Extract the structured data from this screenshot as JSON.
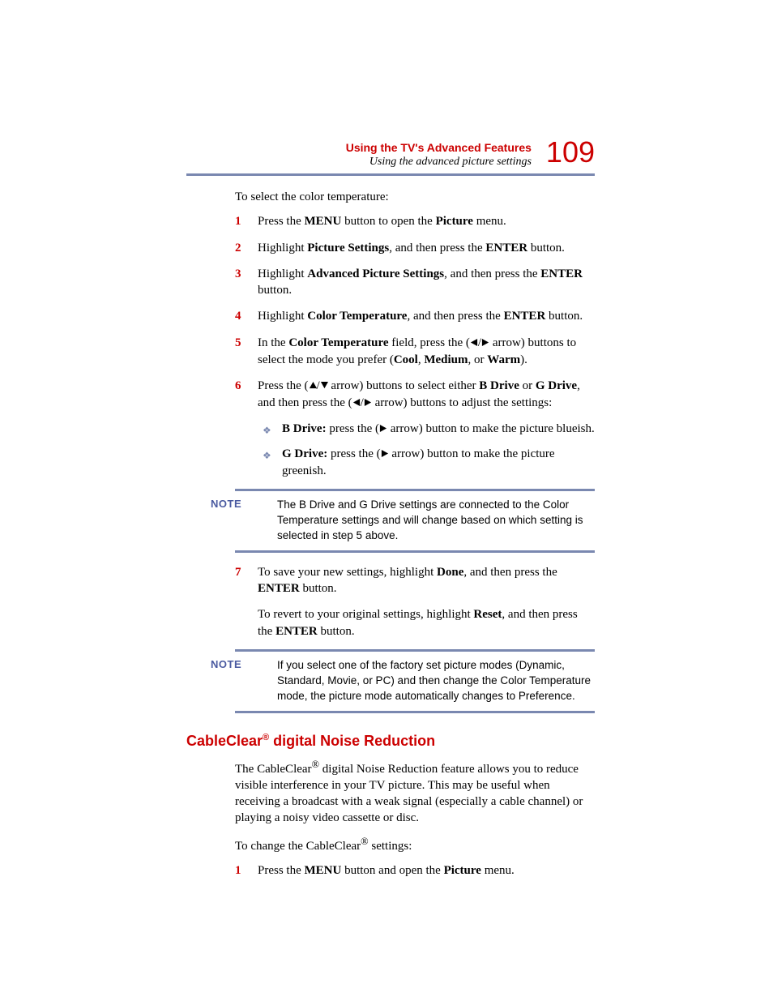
{
  "colors": {
    "accent_red": "#cc0000",
    "rule_blue": "#7a88b0",
    "note_label": "#4a5aa0",
    "text": "#000000",
    "background": "#ffffff"
  },
  "header": {
    "chapter_title": "Using the TV's Advanced Features",
    "section_subtitle": "Using the advanced picture settings",
    "page_number": "109"
  },
  "intro_text": "To select the color temperature:",
  "steps": [
    {
      "n": "1",
      "segments": [
        {
          "t": "Press the "
        },
        {
          "t": "MENU",
          "b": true
        },
        {
          "t": " button to open the "
        },
        {
          "t": "Picture",
          "b": true
        },
        {
          "t": " menu."
        }
      ]
    },
    {
      "n": "2",
      "segments": [
        {
          "t": "Highlight "
        },
        {
          "t": "Picture Settings",
          "b": true
        },
        {
          "t": ", and then press the "
        },
        {
          "t": "ENTER",
          "b": true
        },
        {
          "t": " button."
        }
      ]
    },
    {
      "n": "3",
      "segments": [
        {
          "t": "Highlight "
        },
        {
          "t": "Advanced Picture Settings",
          "b": true
        },
        {
          "t": ", and then press the "
        },
        {
          "t": "ENTER",
          "b": true
        },
        {
          "t": " button."
        }
      ]
    },
    {
      "n": "4",
      "segments": [
        {
          "t": "Highlight "
        },
        {
          "t": "Color Temperature",
          "b": true
        },
        {
          "t": ", and then press the "
        },
        {
          "t": "ENTER",
          "b": true
        },
        {
          "t": " button."
        }
      ]
    },
    {
      "n": "5",
      "segments": [
        {
          "t": "In the "
        },
        {
          "t": "Color Temperature",
          "b": true
        },
        {
          "t": " field, press the ("
        },
        {
          "icon": "left"
        },
        {
          "t": "/"
        },
        {
          "icon": "right"
        },
        {
          "t": " arrow) buttons to select the mode you prefer ("
        },
        {
          "t": "Cool",
          "b": true
        },
        {
          "t": ", "
        },
        {
          "t": "Medium",
          "b": true
        },
        {
          "t": ", or "
        },
        {
          "t": "Warm",
          "b": true
        },
        {
          "t": ")."
        }
      ]
    },
    {
      "n": "6",
      "segments": [
        {
          "t": "Press the ("
        },
        {
          "icon": "up"
        },
        {
          "t": "/"
        },
        {
          "icon": "down"
        },
        {
          "t": " arrow) buttons to select either "
        },
        {
          "t": "B Drive",
          "b": true
        },
        {
          "t": " or "
        },
        {
          "t": "G Drive",
          "b": true
        },
        {
          "t": ", and then press the ("
        },
        {
          "icon": "left"
        },
        {
          "t": "/"
        },
        {
          "icon": "right"
        },
        {
          "t": " arrow) buttons to adjust the settings:"
        }
      ],
      "bullets": [
        {
          "segments": [
            {
              "t": "B Drive:",
              "b": true
            },
            {
              "t": " press the ("
            },
            {
              "icon": "right"
            },
            {
              "t": " arrow) button to make the picture blueish."
            }
          ]
        },
        {
          "segments": [
            {
              "t": "G Drive:",
              "b": true
            },
            {
              "t": " press the ("
            },
            {
              "icon": "right"
            },
            {
              "t": " arrow) button to make the picture greenish."
            }
          ]
        }
      ]
    }
  ],
  "note1": {
    "label": "NOTE",
    "text": "The B Drive and G Drive settings are connected to the Color Temperature settings and will change based on which setting is selected in step 5 above."
  },
  "steps2": [
    {
      "n": "7",
      "para1_segments": [
        {
          "t": "To save your new settings, highlight "
        },
        {
          "t": "Done",
          "b": true
        },
        {
          "t": ", and then press the "
        },
        {
          "t": "ENTER",
          "b": true
        },
        {
          "t": " button."
        }
      ],
      "para2_segments": [
        {
          "t": "To revert to your original settings, highlight "
        },
        {
          "t": "Reset",
          "b": true
        },
        {
          "t": ", and then press the "
        },
        {
          "t": "ENTER",
          "b": true
        },
        {
          "t": " button."
        }
      ]
    }
  ],
  "note2": {
    "label": "NOTE",
    "text": "If you select one of the factory set picture modes (Dynamic, Standard, Movie, or PC) and then change the Color Temperature mode, the picture mode automatically changes to Preference."
  },
  "section2": {
    "heading_pre": "CableClear",
    "heading_sup": "®",
    "heading_post": " digital Noise Reduction",
    "intro_segments": [
      {
        "t": "The CableClear"
      },
      {
        "sup": "®"
      },
      {
        "t": " digital Noise Reduction feature allows you to reduce visible interference in your TV picture. This may be useful when receiving a broadcast with a weak signal (especially a cable channel) or playing a noisy video cassette or disc."
      }
    ],
    "lead_segments": [
      {
        "t": "To change the CableClear"
      },
      {
        "sup": "®"
      },
      {
        "t": " settings:"
      }
    ],
    "steps": [
      {
        "n": "1",
        "segments": [
          {
            "t": "Press the "
          },
          {
            "t": "MENU",
            "b": true
          },
          {
            "t": " button and open the "
          },
          {
            "t": "Picture",
            "b": true
          },
          {
            "t": " menu."
          }
        ]
      }
    ]
  },
  "icons": {
    "arrow_fill": "#000000",
    "diamond": "❖"
  }
}
